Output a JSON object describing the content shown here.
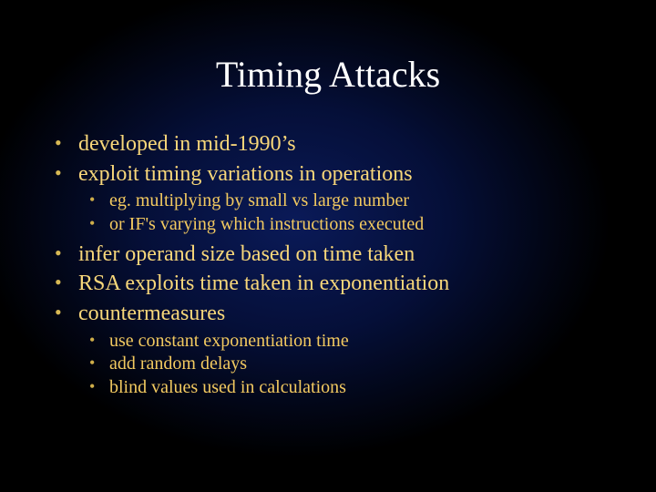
{
  "colors": {
    "title": "#ffffff",
    "bullet_lvl1_text": "#f8d77a",
    "bullet_lvl1_marker": "#d8b954",
    "bullet_lvl2_text": "#f3ca60",
    "bullet_lvl2_marker": "#cfae4a",
    "background_center": "#0a1a58",
    "background_mid": "#050f38",
    "background_edge": "#000000"
  },
  "typography": {
    "title_fontsize": 40,
    "lvl1_fontsize": 24,
    "lvl2_fontsize": 20,
    "font_family": "Times New Roman"
  },
  "title": "Timing Attacks",
  "bullets": [
    {
      "text": "developed in mid-1990’s",
      "children": []
    },
    {
      "text": "exploit timing variations in operations",
      "children": [
        {
          "text": "eg. multiplying by small vs large number"
        },
        {
          "text": "or IF's varying which instructions executed"
        }
      ]
    },
    {
      "text": "infer operand size based on time taken",
      "children": []
    },
    {
      "text": "RSA exploits time taken in exponentiation",
      "children": []
    },
    {
      "text": "countermeasures",
      "children": [
        {
          "text": "use constant exponentiation time"
        },
        {
          "text": "add random delays"
        },
        {
          "text": "blind values used in calculations"
        }
      ]
    }
  ]
}
